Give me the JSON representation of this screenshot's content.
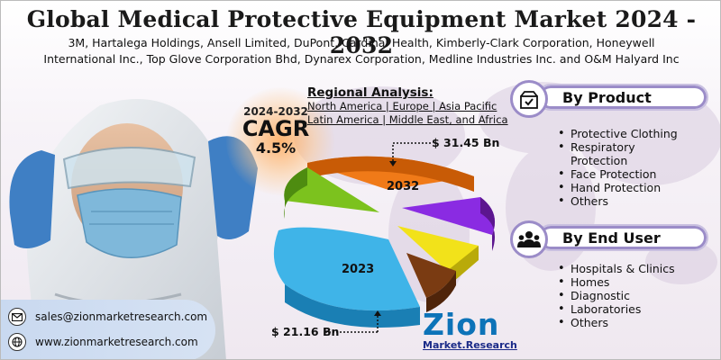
{
  "title": "Global Medical Protective Equipment Market 2024 - 2032",
  "companies_line1": "3M, Hartalega Holdings, Ansell Limited, DuPont, Cardinal Health, Kimberly-Clark Corporation, Honeywell",
  "companies_line2": "International Inc., Top Glove Corporation Bhd, Dynarex Corporation, Medline Industries Inc. and O&M Halyard Inc",
  "cagr": {
    "years": "2024-2032",
    "label": "CAGR",
    "value": "4.5%"
  },
  "regional": {
    "heading": "Regional Analysis:",
    "line1": "North America | Europe | Asia Pacific",
    "line2": "Latin America | Middle East, and Africa"
  },
  "market": {
    "value_2032": "$ 31.45 Bn",
    "value_2023": "$ 21.16 Bn",
    "label_2032": "2032",
    "label_2023": "2023"
  },
  "by_product": {
    "title": "By Product",
    "icon": "box-check-icon",
    "items": [
      "Protective Clothing",
      "Respiratory",
      "Protection",
      "Face Protection",
      "Hand Protection",
      "Others"
    ]
  },
  "by_end_user": {
    "title": "By End User",
    "icon": "users-icon",
    "items": [
      "Hospitals & Clinics",
      "Homes",
      "Diagnostic",
      "Laboratories",
      "Others"
    ]
  },
  "contact": {
    "email": "sales@zionmarketresearch.com",
    "website": "www.zionmarketresearch.com"
  },
  "logo": {
    "brand": "Zion",
    "sub_left": "Market.",
    "sub_right": "Research"
  },
  "colors": {
    "accent": "#9b8cc8",
    "pie_orange": "#f07a18",
    "pie_green": "#7cc21e",
    "pie_purple": "#8a2be2",
    "pie_yellow": "#f2e21a",
    "pie_brown": "#7a3b12",
    "pie_blue": "#3fb4e8",
    "logo_blue": "#0d73b8"
  }
}
